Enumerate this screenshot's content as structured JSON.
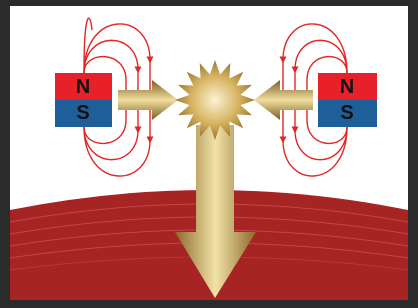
{
  "magnets": [
    {
      "north": "N",
      "south": "S"
    },
    {
      "north": "N",
      "south": "S"
    }
  ]
}
